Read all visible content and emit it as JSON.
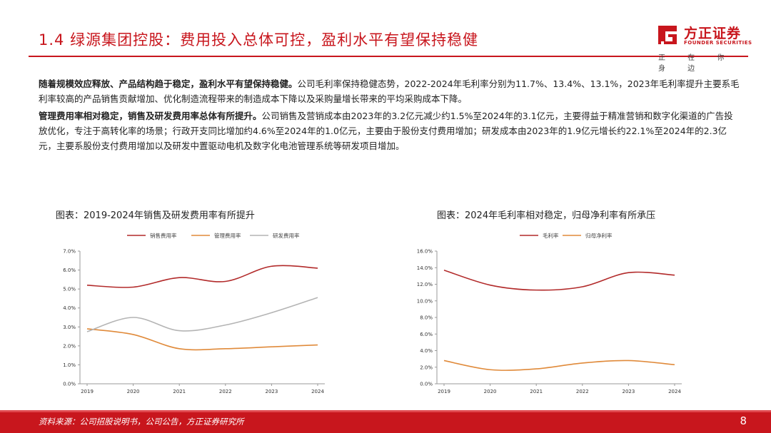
{
  "header": {
    "title": "1.4 绿源集团控股：费用投入总体可控，盈利水平有望保持稳健",
    "logo_cn": "方正证券",
    "logo_en": "FOUNDER SECURITIES",
    "logo_tagline": "正 在 你 身 边"
  },
  "body": {
    "p1_bold": "随着规模效应释放、产品结构趋于稳定，盈利水平有望保持稳健。",
    "p1_text": "公司毛利率保持稳健态势，2022-2024年毛利率分别为11.7%、13.4%、13.1%，2023年毛利率提升主要系毛利率较高的产品销售贡献增加、优化制造流程带来的制造成本下降以及采购量增长带来的平均采购成本下降。",
    "p2_bold": "管理费用率相对稳定，销售及研发费用率总体有所提升。",
    "p2_text": "公司销售及营销成本由2023年的3.2亿元减少约1.5%至2024年的3.1亿元，主要得益于精准营销和数字化渠道的广告投放优化，专注于高转化率的场景；行政开支同比增加约4.6%至2024年的1.0亿元，主要由于股份支付费用增加；研发成本由2023年的1.9亿元增长约22.1%至2024年的2.3亿元，主要系股份支付费用增加以及研发中置驱动电机及数字化电池管理系统等研发项目增加。"
  },
  "chart1_title": "图表：2019-2024年销售及研发费用率有所提升",
  "chart2_title": "图表：2024年毛利率相对稳定，归母净利率有所承压",
  "footer": {
    "source": "资料来源：公司招股说明书，公司公告，方正证券研究所",
    "page": "8"
  },
  "colors": {
    "brand_red": "#c8161d",
    "series_red": "#b22a2a",
    "series_orange": "#e08a3a",
    "series_gray": "#b4b4b4"
  },
  "chart_data": [
    {
      "type": "line",
      "categories": [
        "2019",
        "2020",
        "2021",
        "2022",
        "2023",
        "2024"
      ],
      "series": [
        {
          "name": "销售费用率",
          "values": [
            5.2,
            5.1,
            5.6,
            5.4,
            6.2,
            6.1
          ],
          "color": "#b22a2a"
        },
        {
          "name": "管理费用率",
          "values": [
            2.9,
            2.6,
            1.85,
            1.85,
            1.95,
            2.05
          ],
          "color": "#e08a3a"
        },
        {
          "name": "研发费用率",
          "values": [
            2.75,
            3.5,
            2.8,
            3.1,
            3.75,
            4.55
          ],
          "color": "#b4b4b4"
        }
      ],
      "ylim": [
        0,
        7
      ],
      "yticks": [
        "0.0%",
        "1.0%",
        "2.0%",
        "3.0%",
        "4.0%",
        "5.0%",
        "6.0%",
        "7.0%"
      ],
      "legend": "top"
    },
    {
      "type": "line",
      "categories": [
        "2019",
        "2020",
        "2021",
        "2022",
        "2023",
        "2024"
      ],
      "series": [
        {
          "name": "毛利率",
          "values": [
            13.7,
            11.9,
            11.3,
            11.7,
            13.4,
            13.1
          ],
          "color": "#b22a2a"
        },
        {
          "name": "归母净利率",
          "values": [
            2.8,
            1.7,
            1.8,
            2.5,
            2.8,
            2.3
          ],
          "color": "#e08a3a"
        }
      ],
      "ylim": [
        0,
        16
      ],
      "yticks": [
        "0.0%",
        "2.0%",
        "4.0%",
        "6.0%",
        "8.0%",
        "10.0%",
        "12.0%",
        "14.0%",
        "16.0%"
      ],
      "legend": "top"
    }
  ]
}
